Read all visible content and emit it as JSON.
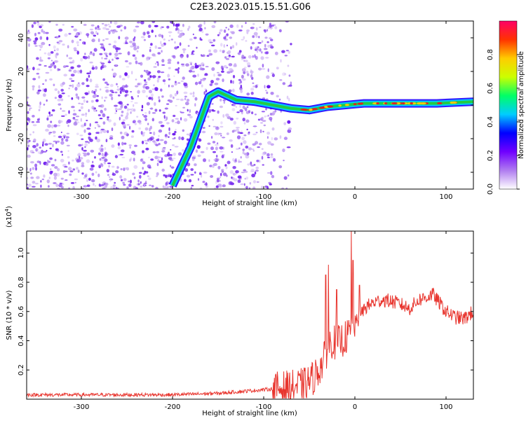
{
  "title": "C2E3.2023.015.15.51.G06",
  "colors": {
    "snr_line": "#e8352e",
    "ridge": "#22cc44",
    "ridge_core": "#dd2222",
    "speckle": "#7722ee"
  },
  "chart_data": [
    {
      "type": "heatmap",
      "xlabel": "Height of straight line (km)",
      "ylabel": "Frequency (Hz)",
      "xlim": [
        -360,
        130
      ],
      "ylim": [
        -50,
        50
      ],
      "xticks": [
        -300,
        -200,
        -100,
        0,
        100
      ],
      "yticks": [
        -40,
        -20,
        0,
        20,
        40
      ],
      "colorbar": {
        "label": "Normalized spectral amplitude",
        "range": [
          0.0,
          1.0
        ],
        "ticks": [
          "0.0",
          "0.2",
          "0.4",
          "0.6",
          "0.8"
        ],
        "colormap": [
          "#ffffff",
          "#b07cf0",
          "#7000ff",
          "#0000ff",
          "#00ccff",
          "#00ff66",
          "#ccff00",
          "#ffcc00",
          "#ff3300",
          "#ff0066"
        ]
      },
      "noise_region_x": [
        -360,
        -90
      ],
      "carrier_track": {
        "x": [
          -200,
          -180,
          -160,
          -150,
          -130,
          -110,
          -90,
          -70,
          -50,
          -30,
          -10,
          10,
          50,
          90,
          130
        ],
        "y": [
          -48,
          -25,
          5,
          8,
          3,
          2,
          0,
          -2,
          -3,
          -1,
          0,
          1,
          1,
          1,
          2
        ]
      }
    },
    {
      "type": "line",
      "xlabel": "Height of straight line (km)",
      "ylabel": "SNR (10 * v/v)",
      "multiplier": "(x10",
      "multiplier_exp": "4",
      "xlim": [
        -360,
        130
      ],
      "ylim": [
        0,
        1.15
      ],
      "xticks": [
        -300,
        -200,
        -100,
        0,
        100
      ],
      "yticks": [
        0.2,
        0.4,
        0.6,
        0.8,
        1.0
      ],
      "series": [
        {
          "x": [
            -360,
            -300,
            -250,
            -200,
            -150,
            -130,
            -110,
            -90,
            -70,
            -55,
            -45,
            -35,
            -30,
            -25,
            -20,
            -10,
            -5,
            -2,
            0,
            5,
            10,
            20,
            30,
            40,
            50,
            60,
            70,
            80,
            85,
            90,
            100,
            110,
            120,
            130
          ],
          "y": [
            0.03,
            0.03,
            0.03,
            0.03,
            0.04,
            0.05,
            0.06,
            0.07,
            0.08,
            0.1,
            0.15,
            0.25,
            0.35,
            0.4,
            0.38,
            0.42,
            0.45,
            0.5,
            0.52,
            0.55,
            0.62,
            0.66,
            0.68,
            0.67,
            0.65,
            0.62,
            0.68,
            0.7,
            0.72,
            0.68,
            0.6,
            0.56,
            0.55,
            0.6
          ]
        }
      ],
      "spikes": [
        {
          "x": -32,
          "y": 0.85
        },
        {
          "x": -29,
          "y": 0.92
        },
        {
          "x": -20,
          "y": 0.75
        },
        {
          "x": -4,
          "y": 1.15
        },
        {
          "x": -2,
          "y": 0.95
        },
        {
          "x": 5,
          "y": 0.78
        }
      ]
    }
  ]
}
